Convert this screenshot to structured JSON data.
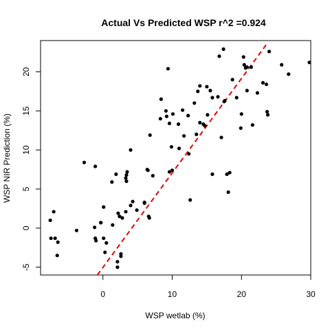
{
  "chart_data": {
    "type": "scatter",
    "title": "Actual Vs Predicted WSP r^2 =0.924",
    "xlabel": "WSP wetlab (%)",
    "ylabel": "WSP NIR Prediction (%)",
    "xlim": [
      -9,
      30
    ],
    "ylim": [
      -6,
      24
    ],
    "x_ticks": [
      0,
      10,
      20,
      30
    ],
    "y_ticks": [
      -5,
      0,
      5,
      10,
      15,
      20
    ],
    "x_tick_labels": [
      "0",
      "10",
      "20",
      "30"
    ],
    "y_tick_labels": [
      "-5",
      "0",
      "5",
      "10",
      "15",
      "20"
    ],
    "grid": false,
    "legend": "none",
    "point_color": "#000000",
    "fit_line": {
      "style": "dashed",
      "color": "#dd0000",
      "from": [
        -0.8,
        -6.0
      ],
      "to": [
        23.6,
        23.5
      ]
    },
    "points": [
      [
        -7.6,
        1.0
      ],
      [
        -7.1,
        2.1
      ],
      [
        -7.5,
        -1.3
      ],
      [
        -6.9,
        -1.3
      ],
      [
        -6.5,
        -1.8
      ],
      [
        -6.6,
        -3.5
      ],
      [
        -3.8,
        -0.3
      ],
      [
        -2.7,
        8.4
      ],
      [
        -1.1,
        7.9
      ],
      [
        -1.2,
        0.1
      ],
      [
        -1.1,
        -1.3
      ],
      [
        -1.0,
        -1.6
      ],
      [
        -0.3,
        0.7
      ],
      [
        -0.3,
        0.7
      ],
      [
        0.1,
        2.7
      ],
      [
        0.1,
        -1.3
      ],
      [
        0.3,
        -3.1
      ],
      [
        0.5,
        -1.9
      ],
      [
        1.4,
        0.4
      ],
      [
        1.3,
        5.9
      ],
      [
        1.9,
        6.9
      ],
      [
        2.1,
        -4.3
      ],
      [
        2.1,
        -5.0
      ],
      [
        2.6,
        -3.3
      ],
      [
        2.6,
        -3.6
      ],
      [
        2.8,
        1.3
      ],
      [
        2.2,
        1.9
      ],
      [
        2.4,
        1.5
      ],
      [
        3.3,
        2.1
      ],
      [
        3.3,
        6.4
      ],
      [
        3.4,
        6.8
      ],
      [
        3.5,
        7.2
      ],
      [
        3.4,
        6.0
      ],
      [
        4.0,
        10.0
      ],
      [
        4.0,
        2.9
      ],
      [
        4.3,
        3.4
      ],
      [
        4.9,
        2.3
      ],
      [
        6.0,
        3.2
      ],
      [
        6.0,
        3.3
      ],
      [
        6.4,
        7.5
      ],
      [
        6.5,
        7.4
      ],
      [
        6.6,
        1.5
      ],
      [
        6.7,
        1.3
      ],
      [
        6.8,
        11.9
      ],
      [
        7.2,
        6.7
      ],
      [
        8.3,
        14.0
      ],
      [
        8.4,
        16.5
      ],
      [
        9.1,
        15.0
      ],
      [
        9.2,
        14.3
      ],
      [
        9.4,
        20.4
      ],
      [
        9.6,
        13.4
      ],
      [
        9.6,
        7.2
      ],
      [
        10.0,
        7.4
      ],
      [
        9.9,
        10.4
      ],
      [
        10.1,
        14.6
      ],
      [
        10.9,
        13.3
      ],
      [
        11.0,
        10.2
      ],
      [
        11.5,
        15.1
      ],
      [
        11.7,
        11.8
      ],
      [
        12.4,
        9.5
      ],
      [
        12.3,
        14.4
      ],
      [
        12.6,
        3.6
      ],
      [
        13.2,
        16.0
      ],
      [
        13.5,
        12.0
      ],
      [
        13.7,
        17.5
      ],
      [
        14.0,
        18.2
      ],
      [
        14.0,
        13.5
      ],
      [
        14.5,
        13.3
      ],
      [
        14.7,
        13.1
      ],
      [
        15.0,
        18.1
      ],
      [
        15.1,
        14.5
      ],
      [
        15.5,
        17.6
      ],
      [
        15.8,
        16.7
      ],
      [
        15.8,
        6.9
      ],
      [
        16.6,
        16.8
      ],
      [
        16.8,
        22.0
      ],
      [
        17.1,
        11.6
      ],
      [
        17.4,
        22.9
      ],
      [
        17.5,
        16.2
      ],
      [
        17.6,
        16.3
      ],
      [
        17.9,
        6.9
      ],
      [
        18.1,
        4.6
      ],
      [
        18.3,
        7.1
      ],
      [
        18.7,
        19.0
      ],
      [
        19.3,
        16.7
      ],
      [
        19.9,
        12.8
      ],
      [
        20.0,
        14.6
      ],
      [
        20.3,
        21.9
      ],
      [
        20.4,
        20.9
      ],
      [
        20.6,
        20.5
      ],
      [
        20.8,
        20.6
      ],
      [
        20.8,
        17.6
      ],
      [
        21.4,
        20.6
      ],
      [
        21.6,
        13.2
      ],
      [
        22.3,
        17.3
      ],
      [
        23.1,
        18.6
      ],
      [
        23.6,
        18.4
      ],
      [
        23.7,
        14.9
      ],
      [
        23.8,
        14.5
      ],
      [
        24.0,
        22.6
      ],
      [
        25.8,
        20.9
      ],
      [
        26.8,
        19.7
      ],
      [
        29.8,
        21.2
      ]
    ]
  }
}
